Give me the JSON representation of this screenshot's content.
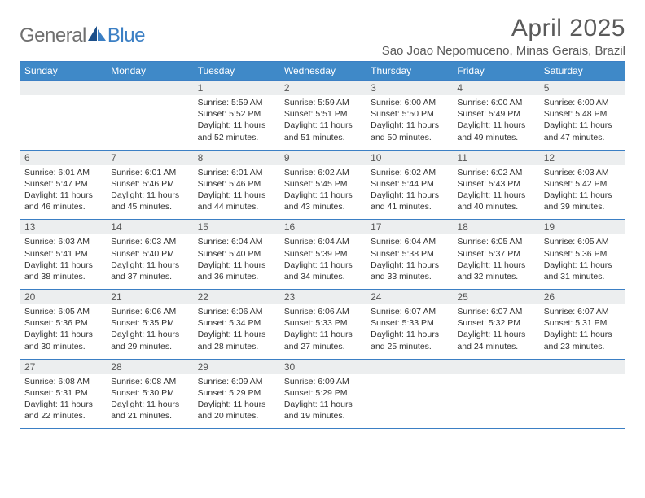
{
  "logo": {
    "word1": "General",
    "word2": "Blue"
  },
  "title": "April 2025",
  "location": "Sao Joao Nepomuceno, Minas Gerais, Brazil",
  "colors": {
    "header_bg": "#3f89c8",
    "header_text": "#ffffff",
    "rule": "#3b7fc4",
    "daynum_bg": "#eceeef",
    "body_text": "#333333",
    "logo_gray": "#6f6f6f",
    "logo_blue": "#3b7fc4",
    "title_color": "#5a5a5a"
  },
  "typography": {
    "title_fontsize": 30,
    "location_fontsize": 15,
    "th_fontsize": 12,
    "daynum_fontsize": 12,
    "body_fontsize": 10.5,
    "logo_fontsize": 24
  },
  "day_names": [
    "Sunday",
    "Monday",
    "Tuesday",
    "Wednesday",
    "Thursday",
    "Friday",
    "Saturday"
  ],
  "weeks": [
    [
      null,
      null,
      {
        "n": "1",
        "sr": "Sunrise: 5:59 AM",
        "ss": "Sunset: 5:52 PM",
        "dl": "Daylight: 11 hours and 52 minutes."
      },
      {
        "n": "2",
        "sr": "Sunrise: 5:59 AM",
        "ss": "Sunset: 5:51 PM",
        "dl": "Daylight: 11 hours and 51 minutes."
      },
      {
        "n": "3",
        "sr": "Sunrise: 6:00 AM",
        "ss": "Sunset: 5:50 PM",
        "dl": "Daylight: 11 hours and 50 minutes."
      },
      {
        "n": "4",
        "sr": "Sunrise: 6:00 AM",
        "ss": "Sunset: 5:49 PM",
        "dl": "Daylight: 11 hours and 49 minutes."
      },
      {
        "n": "5",
        "sr": "Sunrise: 6:00 AM",
        "ss": "Sunset: 5:48 PM",
        "dl": "Daylight: 11 hours and 47 minutes."
      }
    ],
    [
      {
        "n": "6",
        "sr": "Sunrise: 6:01 AM",
        "ss": "Sunset: 5:47 PM",
        "dl": "Daylight: 11 hours and 46 minutes."
      },
      {
        "n": "7",
        "sr": "Sunrise: 6:01 AM",
        "ss": "Sunset: 5:46 PM",
        "dl": "Daylight: 11 hours and 45 minutes."
      },
      {
        "n": "8",
        "sr": "Sunrise: 6:01 AM",
        "ss": "Sunset: 5:46 PM",
        "dl": "Daylight: 11 hours and 44 minutes."
      },
      {
        "n": "9",
        "sr": "Sunrise: 6:02 AM",
        "ss": "Sunset: 5:45 PM",
        "dl": "Daylight: 11 hours and 43 minutes."
      },
      {
        "n": "10",
        "sr": "Sunrise: 6:02 AM",
        "ss": "Sunset: 5:44 PM",
        "dl": "Daylight: 11 hours and 41 minutes."
      },
      {
        "n": "11",
        "sr": "Sunrise: 6:02 AM",
        "ss": "Sunset: 5:43 PM",
        "dl": "Daylight: 11 hours and 40 minutes."
      },
      {
        "n": "12",
        "sr": "Sunrise: 6:03 AM",
        "ss": "Sunset: 5:42 PM",
        "dl": "Daylight: 11 hours and 39 minutes."
      }
    ],
    [
      {
        "n": "13",
        "sr": "Sunrise: 6:03 AM",
        "ss": "Sunset: 5:41 PM",
        "dl": "Daylight: 11 hours and 38 minutes."
      },
      {
        "n": "14",
        "sr": "Sunrise: 6:03 AM",
        "ss": "Sunset: 5:40 PM",
        "dl": "Daylight: 11 hours and 37 minutes."
      },
      {
        "n": "15",
        "sr": "Sunrise: 6:04 AM",
        "ss": "Sunset: 5:40 PM",
        "dl": "Daylight: 11 hours and 36 minutes."
      },
      {
        "n": "16",
        "sr": "Sunrise: 6:04 AM",
        "ss": "Sunset: 5:39 PM",
        "dl": "Daylight: 11 hours and 34 minutes."
      },
      {
        "n": "17",
        "sr": "Sunrise: 6:04 AM",
        "ss": "Sunset: 5:38 PM",
        "dl": "Daylight: 11 hours and 33 minutes."
      },
      {
        "n": "18",
        "sr": "Sunrise: 6:05 AM",
        "ss": "Sunset: 5:37 PM",
        "dl": "Daylight: 11 hours and 32 minutes."
      },
      {
        "n": "19",
        "sr": "Sunrise: 6:05 AM",
        "ss": "Sunset: 5:36 PM",
        "dl": "Daylight: 11 hours and 31 minutes."
      }
    ],
    [
      {
        "n": "20",
        "sr": "Sunrise: 6:05 AM",
        "ss": "Sunset: 5:36 PM",
        "dl": "Daylight: 11 hours and 30 minutes."
      },
      {
        "n": "21",
        "sr": "Sunrise: 6:06 AM",
        "ss": "Sunset: 5:35 PM",
        "dl": "Daylight: 11 hours and 29 minutes."
      },
      {
        "n": "22",
        "sr": "Sunrise: 6:06 AM",
        "ss": "Sunset: 5:34 PM",
        "dl": "Daylight: 11 hours and 28 minutes."
      },
      {
        "n": "23",
        "sr": "Sunrise: 6:06 AM",
        "ss": "Sunset: 5:33 PM",
        "dl": "Daylight: 11 hours and 27 minutes."
      },
      {
        "n": "24",
        "sr": "Sunrise: 6:07 AM",
        "ss": "Sunset: 5:33 PM",
        "dl": "Daylight: 11 hours and 25 minutes."
      },
      {
        "n": "25",
        "sr": "Sunrise: 6:07 AM",
        "ss": "Sunset: 5:32 PM",
        "dl": "Daylight: 11 hours and 24 minutes."
      },
      {
        "n": "26",
        "sr": "Sunrise: 6:07 AM",
        "ss": "Sunset: 5:31 PM",
        "dl": "Daylight: 11 hours and 23 minutes."
      }
    ],
    [
      {
        "n": "27",
        "sr": "Sunrise: 6:08 AM",
        "ss": "Sunset: 5:31 PM",
        "dl": "Daylight: 11 hours and 22 minutes."
      },
      {
        "n": "28",
        "sr": "Sunrise: 6:08 AM",
        "ss": "Sunset: 5:30 PM",
        "dl": "Daylight: 11 hours and 21 minutes."
      },
      {
        "n": "29",
        "sr": "Sunrise: 6:09 AM",
        "ss": "Sunset: 5:29 PM",
        "dl": "Daylight: 11 hours and 20 minutes."
      },
      {
        "n": "30",
        "sr": "Sunrise: 6:09 AM",
        "ss": "Sunset: 5:29 PM",
        "dl": "Daylight: 11 hours and 19 minutes."
      },
      null,
      null,
      null
    ]
  ]
}
